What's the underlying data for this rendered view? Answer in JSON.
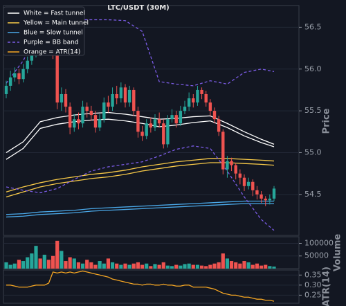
{
  "chart_data": {
    "type": "candlestick",
    "title": "LTC/USDT (30M)",
    "y_label": "Price",
    "up_color": "#26a69a",
    "down_color": "#ef5350",
    "grid": true,
    "ylim": [
      54.01,
      56.76
    ],
    "yticks": [
      {
        "value": 54.5,
        "label": "54.5"
      },
      {
        "value": 55.0,
        "label": "55.0"
      },
      {
        "value": 55.5,
        "label": "55.5"
      },
      {
        "value": 56.0,
        "label": "56.0"
      },
      {
        "value": 56.5,
        "label": "56.5"
      }
    ],
    "open": [
      55.7,
      55.8,
      55.9,
      55.95,
      55.88,
      56.0,
      56.1,
      56.2,
      56.3,
      56.25,
      56.4,
      56.35,
      56.2,
      55.6,
      55.7,
      55.55,
      55.3,
      55.4,
      55.35,
      55.55,
      55.5,
      55.45,
      55.3,
      55.4,
      55.6,
      55.55,
      55.7,
      55.65,
      55.78,
      55.6,
      55.75,
      55.5,
      55.25,
      55.2,
      55.35,
      55.3,
      55.4,
      55.35,
      55.1,
      55.4,
      55.45,
      55.35,
      55.5,
      55.55,
      55.65,
      55.6,
      55.75,
      55.7,
      55.6,
      55.5,
      55.4,
      55.25,
      54.8,
      54.9,
      54.85,
      54.75,
      54.7,
      54.6,
      54.65,
      54.55,
      54.5,
      54.45,
      54.43,
      54.45
    ],
    "high": [
      55.86,
      55.98,
      56.02,
      56.0,
      56.06,
      56.15,
      56.28,
      56.38,
      56.36,
      56.48,
      56.52,
      56.42,
      56.25,
      55.78,
      55.76,
      55.6,
      55.46,
      55.48,
      55.62,
      55.6,
      55.56,
      55.5,
      55.46,
      55.66,
      55.68,
      55.78,
      55.8,
      55.84,
      55.82,
      55.8,
      55.78,
      55.55,
      55.32,
      55.4,
      55.42,
      55.46,
      55.48,
      55.4,
      55.45,
      55.52,
      55.5,
      55.56,
      55.62,
      55.72,
      55.7,
      55.8,
      55.78,
      55.74,
      55.64,
      55.54,
      55.44,
      55.28,
      54.96,
      54.94,
      54.88,
      54.8,
      54.74,
      54.7,
      54.68,
      54.6,
      54.54,
      54.48,
      54.5,
      54.6
    ],
    "low": [
      55.65,
      55.74,
      55.85,
      55.82,
      55.84,
      55.95,
      56.05,
      56.14,
      56.18,
      56.2,
      56.28,
      56.12,
      55.52,
      55.5,
      55.48,
      55.22,
      55.25,
      55.28,
      55.3,
      55.42,
      55.38,
      55.24,
      55.26,
      55.36,
      55.48,
      55.5,
      55.58,
      55.6,
      55.54,
      55.55,
      55.44,
      55.18,
      55.14,
      55.16,
      55.24,
      55.26,
      55.3,
      55.05,
      55.06,
      55.36,
      55.3,
      55.32,
      55.46,
      55.5,
      55.54,
      55.56,
      55.64,
      55.55,
      55.44,
      55.35,
      55.2,
      54.74,
      54.7,
      54.78,
      54.68,
      54.62,
      54.54,
      54.56,
      54.48,
      54.44,
      54.4,
      54.36,
      54.38,
      54.42
    ],
    "close": [
      55.8,
      55.9,
      55.95,
      55.88,
      56.0,
      56.1,
      56.2,
      56.3,
      56.25,
      56.4,
      56.35,
      56.2,
      55.6,
      55.7,
      55.55,
      55.3,
      55.4,
      55.35,
      55.55,
      55.5,
      55.45,
      55.3,
      55.4,
      55.6,
      55.55,
      55.7,
      55.65,
      55.78,
      55.6,
      55.75,
      55.5,
      55.25,
      55.2,
      55.35,
      55.3,
      55.4,
      55.35,
      55.1,
      55.4,
      55.45,
      55.35,
      55.5,
      55.55,
      55.65,
      55.6,
      55.75,
      55.7,
      55.6,
      55.5,
      55.4,
      55.25,
      54.8,
      54.9,
      54.85,
      54.75,
      54.7,
      54.6,
      54.65,
      54.55,
      54.5,
      54.45,
      54.43,
      54.45,
      54.57
    ],
    "line_x": [
      0,
      4,
      8,
      12,
      16,
      20,
      24,
      28,
      32,
      36,
      40,
      44,
      48,
      52,
      56,
      60,
      63
    ],
    "series": [
      {
        "name": "White = Fast tunnel",
        "color": "#ffffff",
        "upper": [
          55.0,
          55.13,
          55.37,
          55.42,
          55.45,
          55.47,
          55.48,
          55.46,
          55.43,
          55.4,
          55.41,
          55.43,
          55.44,
          55.35,
          55.25,
          55.16,
          55.1
        ],
        "lower": [
          54.92,
          55.05,
          55.29,
          55.34,
          55.37,
          55.39,
          55.4,
          55.38,
          55.35,
          55.31,
          55.33,
          55.36,
          55.38,
          55.3,
          55.2,
          55.12,
          55.07
        ]
      },
      {
        "name": "Yellow = Main tunnel",
        "color": "#f7c948",
        "upper": [
          54.53,
          54.59,
          54.64,
          54.68,
          54.71,
          54.74,
          54.76,
          54.79,
          54.83,
          54.86,
          54.89,
          54.91,
          54.93,
          54.93,
          54.92,
          54.91,
          54.9
        ],
        "lower": [
          54.47,
          54.53,
          54.59,
          54.63,
          54.66,
          54.69,
          54.71,
          54.74,
          54.78,
          54.81,
          54.84,
          54.86,
          54.88,
          54.88,
          54.87,
          54.86,
          54.85
        ]
      },
      {
        "name": "Blue = Slow tunnel",
        "color": "#4aa8e8",
        "upper": [
          54.26,
          54.27,
          54.29,
          54.3,
          54.31,
          54.33,
          54.34,
          54.35,
          54.36,
          54.37,
          54.38,
          54.39,
          54.4,
          54.41,
          54.42,
          54.42,
          54.42
        ],
        "lower": [
          54.23,
          54.24,
          54.26,
          54.27,
          54.28,
          54.3,
          54.31,
          54.32,
          54.33,
          54.34,
          54.35,
          54.36,
          54.37,
          54.38,
          54.39,
          54.39,
          54.39
        ]
      },
      {
        "name": "Purple = BB band",
        "color": "#7b5ce6",
        "dash": true,
        "upper": [
          55.83,
          56.1,
          56.5,
          56.58,
          56.59,
          56.59,
          56.59,
          56.58,
          56.45,
          55.85,
          55.82,
          55.8,
          55.86,
          55.82,
          55.96,
          56.0,
          55.97
        ],
        "lower": [
          54.59,
          54.55,
          54.52,
          54.57,
          54.68,
          54.78,
          54.83,
          54.86,
          54.89,
          54.96,
          55.04,
          55.08,
          55.05,
          54.78,
          54.47,
          54.2,
          54.07
        ]
      },
      {
        "name": "Orange = ATR(14)",
        "color": "#f5a623",
        "panel": "atr",
        "values": [
          0.3,
          0.3,
          0.295,
          0.29,
          0.29,
          0.29,
          0.295,
          0.3,
          0.3,
          0.3,
          0.31,
          0.365,
          0.36,
          0.365,
          0.36,
          0.365,
          0.36,
          0.365,
          0.37,
          0.365,
          0.36,
          0.355,
          0.35,
          0.345,
          0.34,
          0.33,
          0.325,
          0.32,
          0.315,
          0.31,
          0.305,
          0.305,
          0.3,
          0.305,
          0.305,
          0.3,
          0.3,
          0.305,
          0.3,
          0.3,
          0.295,
          0.295,
          0.3,
          0.3,
          0.29,
          0.29,
          0.29,
          0.29,
          0.285,
          0.28,
          0.27,
          0.26,
          0.255,
          0.25,
          0.25,
          0.245,
          0.24,
          0.24,
          0.235,
          0.23,
          0.23,
          0.225,
          0.225,
          0.22
        ]
      }
    ],
    "volume_panel": {
      "label": "Volume",
      "ylim": [
        0,
        126000
      ],
      "yticks": [
        50000,
        100000
      ],
      "values": [
        25000,
        15000,
        20000,
        35000,
        30000,
        45000,
        60000,
        90000,
        40000,
        55000,
        35000,
        50000,
        110000,
        70000,
        30000,
        45000,
        40000,
        25000,
        20000,
        35000,
        25000,
        15000,
        30000,
        20000,
        40000,
        25000,
        20000,
        15000,
        20000,
        15000,
        20000,
        25000,
        15000,
        20000,
        10000,
        18000,
        15000,
        25000,
        12000,
        10000,
        15000,
        12000,
        18000,
        20000,
        15000,
        15000,
        12000,
        10000,
        15000,
        20000,
        25000,
        60000,
        40000,
        30000,
        25000,
        20000,
        30000,
        25000,
        15000,
        20000,
        12000,
        15000,
        10000,
        8000
      ]
    },
    "atr_panel": {
      "label": "ATR(14)",
      "ylim": [
        0.21,
        0.375
      ],
      "yticks": [
        0.25,
        {
          "value": 0.3,
          "label": "0.30"
        },
        0.35
      ]
    }
  }
}
